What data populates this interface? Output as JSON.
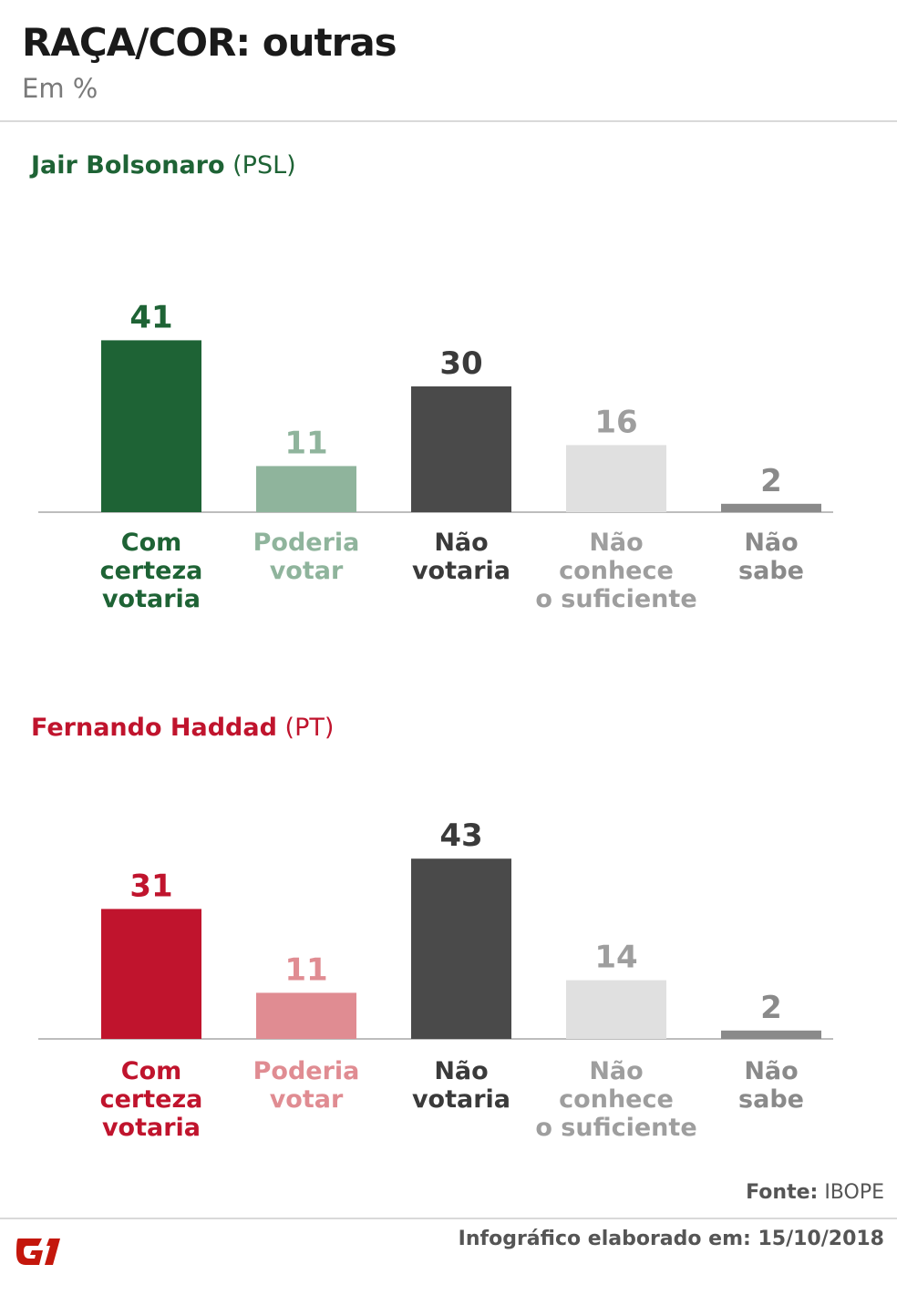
{
  "header": {
    "title": "RAÇA/COR: outras",
    "subtitle": "Em %"
  },
  "chart_data": [
    {
      "type": "bar",
      "candidate": "Jair Bolsonaro",
      "party": "(PSL)",
      "candidate_color": "#1e6335",
      "categories": [
        "Com certeza votaria",
        "Poderia votar",
        "Não votaria",
        "Não conhece o suficiente",
        "Não sabe"
      ],
      "category_lines": [
        [
          "Com",
          "certeza",
          "votaria"
        ],
        [
          "Poderia",
          "votar"
        ],
        [
          "Não",
          "votaria"
        ],
        [
          "Não",
          "conhece",
          "o suficiente"
        ],
        [
          "Não",
          "sabe"
        ]
      ],
      "values": [
        41,
        11,
        30,
        16,
        2
      ],
      "bar_colors": [
        "#1e6335",
        "#8fb49c",
        "#4a4a4a",
        "#e0e0e0",
        "#8a8a8a"
      ],
      "label_colors": [
        "#1e6335",
        "#8fb49c",
        "#3a3a3a",
        "#9e9e9e",
        "#8a8a8a"
      ]
    },
    {
      "type": "bar",
      "candidate": "Fernando Haddad",
      "party": "(PT)",
      "candidate_color": "#c0142d",
      "categories": [
        "Com certeza votaria",
        "Poderia votar",
        "Não votaria",
        "Não conhece o suficiente",
        "Não sabe"
      ],
      "category_lines": [
        [
          "Com",
          "certeza",
          "votaria"
        ],
        [
          "Poderia",
          "votar"
        ],
        [
          "Não",
          "votaria"
        ],
        [
          "Não",
          "conhece",
          "o suficiente"
        ],
        [
          "Não",
          "sabe"
        ]
      ],
      "values": [
        31,
        11,
        43,
        14,
        2
      ],
      "bar_colors": [
        "#c0142d",
        "#e08c92",
        "#4a4a4a",
        "#e0e0e0",
        "#8a8a8a"
      ],
      "label_colors": [
        "#c0142d",
        "#e08c92",
        "#3a3a3a",
        "#9e9e9e",
        "#8a8a8a"
      ]
    }
  ],
  "footer": {
    "source_key": "Fonte:",
    "source_value": "IBOPE",
    "date_text": "Infográfico elaborado em: 15/10/2018",
    "logo": "G1"
  }
}
